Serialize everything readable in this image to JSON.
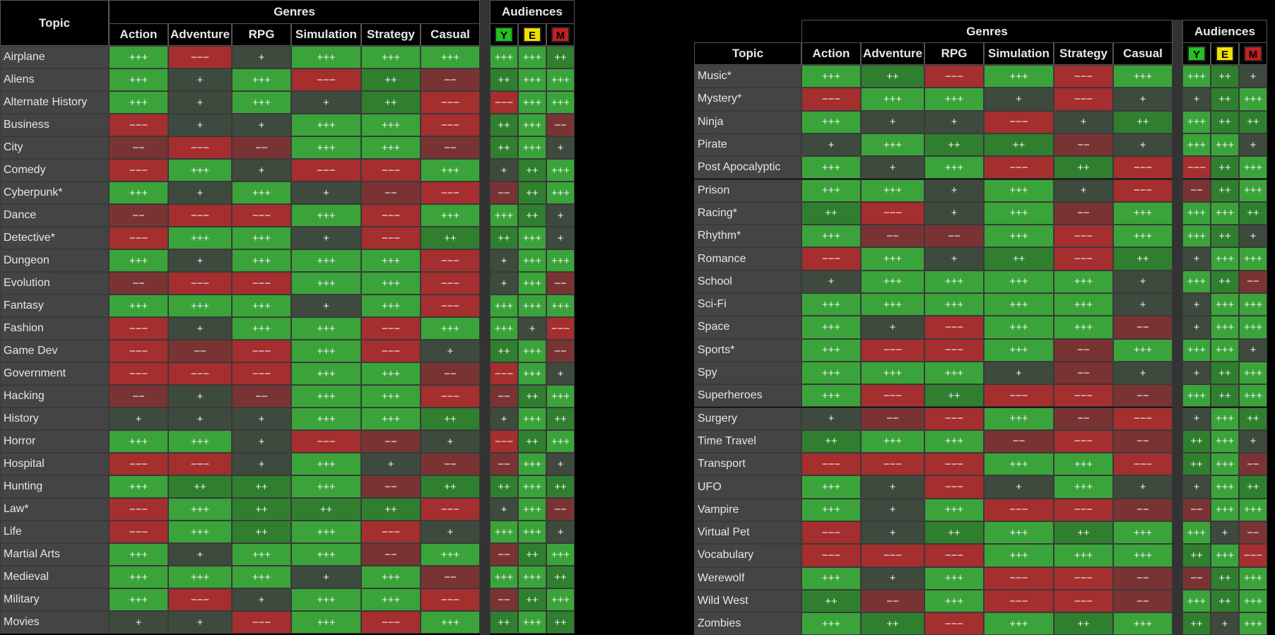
{
  "left": {
    "topic_header": "Topic",
    "genres_header": "Genres",
    "audiences_header": "Audiences",
    "genre_columns": [
      "Action",
      "Adventure",
      "RPG",
      "Simulation",
      "Strategy",
      "Casual"
    ],
    "audience_columns": [
      {
        "label": "Y",
        "color": "#22c022"
      },
      {
        "label": "E",
        "color": "#f0e000"
      },
      {
        "label": "M",
        "color": "#c82020"
      }
    ],
    "rows": [
      {
        "topic": "Airplane",
        "g": [
          "+++",
          "−−−",
          "+",
          "+++",
          "+++",
          "+++"
        ],
        "a": [
          "+++",
          "+++",
          "++"
        ]
      },
      {
        "topic": "Aliens",
        "g": [
          "+++",
          "+",
          "+++",
          "−−−",
          "++",
          "−−"
        ],
        "a": [
          "++",
          "+++",
          "+++"
        ]
      },
      {
        "topic": "Alternate History",
        "g": [
          "+++",
          "+",
          "+++",
          "+",
          "++",
          "−−−"
        ],
        "a": [
          "−−−",
          "+++",
          "+++"
        ]
      },
      {
        "topic": "Business",
        "g": [
          "−−−",
          "+",
          "+",
          "+++",
          "+++",
          "−−−"
        ],
        "a": [
          "++",
          "+++",
          "−−"
        ]
      },
      {
        "topic": "City",
        "g": [
          "−−",
          "−−−",
          "−−",
          "+++",
          "+++",
          "−−"
        ],
        "a": [
          "++",
          "+++",
          "+"
        ]
      },
      {
        "topic": "Comedy",
        "g": [
          "−−−",
          "+++",
          "+",
          "−−−",
          "−−−",
          "+++"
        ],
        "a": [
          "+",
          "++",
          "+++"
        ]
      },
      {
        "topic": "Cyberpunk*",
        "g": [
          "+++",
          "+",
          "+++",
          "+",
          "−−",
          "−−−"
        ],
        "a": [
          "−−",
          "++",
          "+++"
        ]
      },
      {
        "topic": "Dance",
        "g": [
          "−−",
          "−−−",
          "−−−",
          "+++",
          "−−−",
          "+++"
        ],
        "a": [
          "+++",
          "++",
          "+"
        ]
      },
      {
        "topic": "Detective*",
        "g": [
          "−−−",
          "+++",
          "+++",
          "+",
          "−−−",
          "++"
        ],
        "a": [
          "++",
          "+++",
          "+"
        ]
      },
      {
        "topic": "Dungeon",
        "g": [
          "+++",
          "+",
          "+++",
          "+++",
          "+++",
          "−−−"
        ],
        "a": [
          "+",
          "+++",
          "+++"
        ]
      },
      {
        "topic": "Evolution",
        "g": [
          "−−",
          "−−−",
          "−−−",
          "+++",
          "+++",
          "−−−"
        ],
        "a": [
          "+",
          "+++",
          "−−"
        ]
      },
      {
        "topic": "Fantasy",
        "g": [
          "+++",
          "+++",
          "+++",
          "+",
          "+++",
          "−−−"
        ],
        "a": [
          "+++",
          "+++",
          "+++"
        ]
      },
      {
        "topic": "Fashion",
        "g": [
          "−−−",
          "+",
          "+++",
          "+++",
          "−−−",
          "+++"
        ],
        "a": [
          "+++",
          "+",
          "−−−"
        ]
      },
      {
        "topic": "Game Dev",
        "g": [
          "−−−",
          "−−",
          "−−−",
          "+++",
          "−−−",
          "+"
        ],
        "a": [
          "++",
          "+++",
          "−−"
        ]
      },
      {
        "topic": "Government",
        "g": [
          "−−−",
          "−−−",
          "−−−",
          "+++",
          "+++",
          "−−"
        ],
        "a": [
          "−−−",
          "+++",
          "+"
        ]
      },
      {
        "topic": "Hacking",
        "g": [
          "−−",
          "+",
          "−−",
          "+++",
          "+++",
          "−−−"
        ],
        "a": [
          "−−",
          "++",
          "+++"
        ]
      },
      {
        "topic": "History",
        "g": [
          "+",
          "+",
          "+",
          "+++",
          "+++",
          "++"
        ],
        "a": [
          "+",
          "+++",
          "++"
        ]
      },
      {
        "topic": "Horror",
        "g": [
          "+++",
          "+++",
          "+",
          "−−−",
          "−−",
          "+"
        ],
        "a": [
          "−−−",
          "++",
          "+++"
        ]
      },
      {
        "topic": "Hospital",
        "g": [
          "−−−",
          "−−−",
          "+",
          "+++",
          "+",
          "−−"
        ],
        "a": [
          "−−",
          "+++",
          "+"
        ]
      },
      {
        "topic": "Hunting",
        "g": [
          "+++",
          "++",
          "++",
          "+++",
          "−−",
          "++"
        ],
        "a": [
          "++",
          "+++",
          "++"
        ]
      },
      {
        "topic": "Law*",
        "g": [
          "−−−",
          "+++",
          "++",
          "++",
          "++",
          "−−−"
        ],
        "a": [
          "+",
          "+++",
          "−−"
        ]
      },
      {
        "topic": "Life",
        "g": [
          "−−−",
          "+++",
          "++",
          "+++",
          "−−−",
          "+"
        ],
        "a": [
          "+++",
          "+++",
          "+"
        ]
      },
      {
        "topic": "Martial Arts",
        "g": [
          "+++",
          "+",
          "+++",
          "+++",
          "−−",
          "+++"
        ],
        "a": [
          "−−",
          "++",
          "+++"
        ]
      },
      {
        "topic": "Medieval",
        "g": [
          "+++",
          "+++",
          "+++",
          "+",
          "+++",
          "−−"
        ],
        "a": [
          "+++",
          "+++",
          "++"
        ]
      },
      {
        "topic": "Military",
        "g": [
          "+++",
          "−−−",
          "+",
          "+++",
          "+++",
          "−−−"
        ],
        "a": [
          "−−",
          "++",
          "+++"
        ]
      },
      {
        "topic": "Movies",
        "g": [
          "+",
          "+",
          "−−−",
          "+++",
          "−−−",
          "+++"
        ],
        "a": [
          "++",
          "+++",
          "++"
        ]
      }
    ]
  },
  "right": {
    "topic_header": "Topic",
    "genres_header": "Genres",
    "audiences_header": "Audiences",
    "genre_columns": [
      "Action",
      "Adventure",
      "RPG",
      "Simulation",
      "Strategy",
      "Casual"
    ],
    "audience_columns": [
      {
        "label": "Y",
        "color": "#22c022"
      },
      {
        "label": "E",
        "color": "#f0e000"
      },
      {
        "label": "M",
        "color": "#c82020"
      }
    ],
    "rows": [
      {
        "topic": "Music*",
        "g": [
          "+++",
          "++",
          "−−−",
          "+++",
          "−−−",
          "+++"
        ],
        "a": [
          "+++",
          "++",
          "+"
        ]
      },
      {
        "topic": "Mystery*",
        "g": [
          "−−−",
          "+++",
          "+++",
          "+",
          "−−−",
          "+"
        ],
        "a": [
          "+",
          "++",
          "+++"
        ]
      },
      {
        "topic": "Ninja",
        "g": [
          "+++",
          "+",
          "+",
          "−−−",
          "+",
          "++"
        ],
        "a": [
          "+++",
          "++",
          "++"
        ]
      },
      {
        "topic": "Pirate",
        "g": [
          "+",
          "+++",
          "++",
          "++",
          "−−",
          "+"
        ],
        "a": [
          "+++",
          "+++",
          "+"
        ]
      },
      {
        "topic": "Post Apocalyptic",
        "g": [
          "+++",
          "+",
          "+++",
          "−−−",
          "++",
          "−−−"
        ],
        "a": [
          "−−−",
          "++",
          "+++"
        ]
      },
      {
        "topic": "Prison",
        "g": [
          "+++",
          "+++",
          "+",
          "+++",
          "+",
          "−−−"
        ],
        "a": [
          "−−",
          "++",
          "+++"
        ]
      },
      {
        "topic": "Racing*",
        "g": [
          "++",
          "−−−",
          "+",
          "+++",
          "−−",
          "+++"
        ],
        "a": [
          "+++",
          "+++",
          "++"
        ]
      },
      {
        "topic": "Rhythm*",
        "g": [
          "+++",
          "−−",
          "−−",
          "+++",
          "−−−",
          "+++"
        ],
        "a": [
          "+++",
          "++",
          "+"
        ]
      },
      {
        "topic": "Romance",
        "g": [
          "−−−",
          "+++",
          "+",
          "++",
          "−−−",
          "++"
        ],
        "a": [
          "+",
          "+++",
          "+++"
        ]
      },
      {
        "topic": "School",
        "g": [
          "+",
          "+++",
          "+++",
          "+++",
          "+++",
          "+"
        ],
        "a": [
          "+++",
          "++",
          "−−"
        ]
      },
      {
        "topic": "Sci-Fi",
        "g": [
          "+++",
          "+++",
          "+++",
          "+++",
          "+++",
          "+"
        ],
        "a": [
          "+",
          "+++",
          "+++"
        ]
      },
      {
        "topic": "Space",
        "g": [
          "+++",
          "+",
          "−−−",
          "+++",
          "+++",
          "−−"
        ],
        "a": [
          "+",
          "+++",
          "+++"
        ]
      },
      {
        "topic": "Sports*",
        "g": [
          "+++",
          "−−−",
          "−−−",
          "+++",
          "−−",
          "+++"
        ],
        "a": [
          "+++",
          "+++",
          "+"
        ]
      },
      {
        "topic": "Spy",
        "g": [
          "+++",
          "+++",
          "+++",
          "+",
          "−−",
          "+"
        ],
        "a": [
          "+",
          "++",
          "+++"
        ]
      },
      {
        "topic": "Superheroes",
        "g": [
          "+++",
          "−−−",
          "++",
          "−−−",
          "−−−",
          "−−"
        ],
        "a": [
          "+++",
          "++",
          "+++"
        ]
      },
      {
        "topic": "Surgery",
        "g": [
          "+",
          "−−",
          "−−−",
          "+++",
          "−−",
          "−−−"
        ],
        "a": [
          "+",
          "+++",
          "++"
        ]
      },
      {
        "topic": "Time Travel",
        "g": [
          "++",
          "+++",
          "+++",
          "−−",
          "−−−",
          "−−"
        ],
        "a": [
          "++",
          "+++",
          "+"
        ]
      },
      {
        "topic": "Transport",
        "g": [
          "−−−",
          "−−−",
          "−−−",
          "+++",
          "+++",
          "−−−"
        ],
        "a": [
          "++",
          "+++",
          "−−"
        ]
      },
      {
        "topic": "UFO",
        "g": [
          "+++",
          "+",
          "−−−",
          "+",
          "+++",
          "+"
        ],
        "a": [
          "+",
          "+++",
          "++"
        ]
      },
      {
        "topic": "Vampire",
        "g": [
          "+++",
          "+",
          "+++",
          "−−−",
          "−−−",
          "−−"
        ],
        "a": [
          "−−",
          "+++",
          "+++"
        ]
      },
      {
        "topic": "Virtual Pet",
        "g": [
          "−−−",
          "+",
          "++",
          "+++",
          "++",
          "+++"
        ],
        "a": [
          "+++",
          "+",
          "−−"
        ]
      },
      {
        "topic": "Vocabulary",
        "g": [
          "−−−",
          "−−−",
          "−−−",
          "+++",
          "+++",
          "+++"
        ],
        "a": [
          "++",
          "+++",
          "−−−"
        ]
      },
      {
        "topic": "Werewolf",
        "g": [
          "+++",
          "+",
          "+++",
          "−−−",
          "−−−",
          "−−"
        ],
        "a": [
          "−−",
          "++",
          "+++"
        ]
      },
      {
        "topic": "Wild West",
        "g": [
          "++",
          "−−",
          "+++",
          "−−−",
          "−−−",
          "−−"
        ],
        "a": [
          "+++",
          "++",
          "+++"
        ]
      },
      {
        "topic": "Zombies",
        "g": [
          "+++",
          "++",
          "−−−",
          "+++",
          "++",
          "+++"
        ],
        "a": [
          "++",
          "+",
          "+++"
        ]
      }
    ]
  }
}
